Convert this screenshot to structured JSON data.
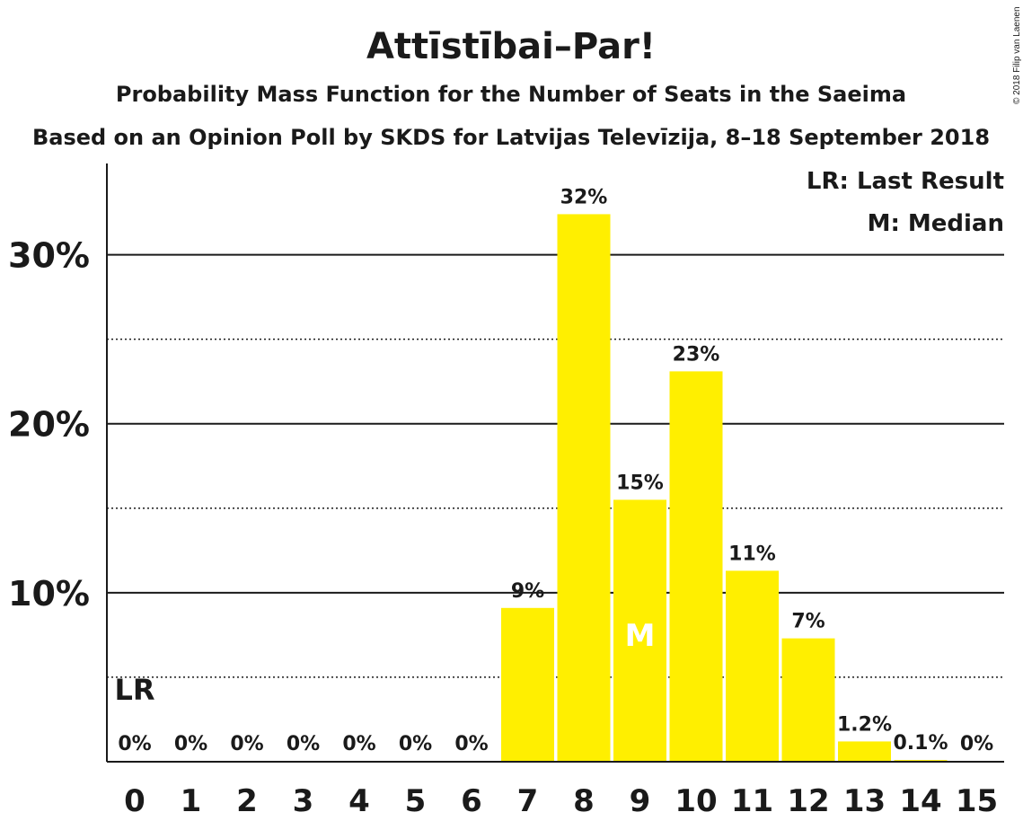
{
  "chart_data": {
    "type": "bar",
    "title": "Attīstībai–Par!",
    "subtitle1": "Probability Mass Function for the Number of Seats in the Saeima",
    "subtitle2": "Based on an Opinion Poll by SKDS for Latvijas Televīzija, 8–18 September 2018",
    "copyright": "© 2018 Filip van Laenen",
    "categories": [
      "0",
      "1",
      "2",
      "3",
      "4",
      "5",
      "6",
      "7",
      "8",
      "9",
      "10",
      "11",
      "12",
      "13",
      "14",
      "15"
    ],
    "values": [
      0,
      0,
      0,
      0,
      0,
      0,
      0,
      9.1,
      32.4,
      15.5,
      23.1,
      11.3,
      7.3,
      1.2,
      0.1,
      0
    ],
    "value_labels": [
      "0%",
      "0%",
      "0%",
      "0%",
      "0%",
      "0%",
      "0%",
      "9%",
      "32%",
      "15%",
      "23%",
      "11%",
      "7%",
      "1.2%",
      "0.1%",
      "0%"
    ],
    "ylim": [
      0,
      35
    ],
    "yticks": [
      10,
      20,
      30
    ],
    "ytick_labels": [
      "10%",
      "20%",
      "30%"
    ],
    "minor_gridlines": [
      5,
      15,
      25
    ],
    "grid": true,
    "bar_color": "#ffef00",
    "last_result_seat": "0",
    "last_result_marker": "LR",
    "median_seat": "9",
    "median_marker": "M",
    "legend": {
      "placement": "top-right",
      "items": [
        "LR: Last Result",
        "M: Median"
      ]
    }
  }
}
